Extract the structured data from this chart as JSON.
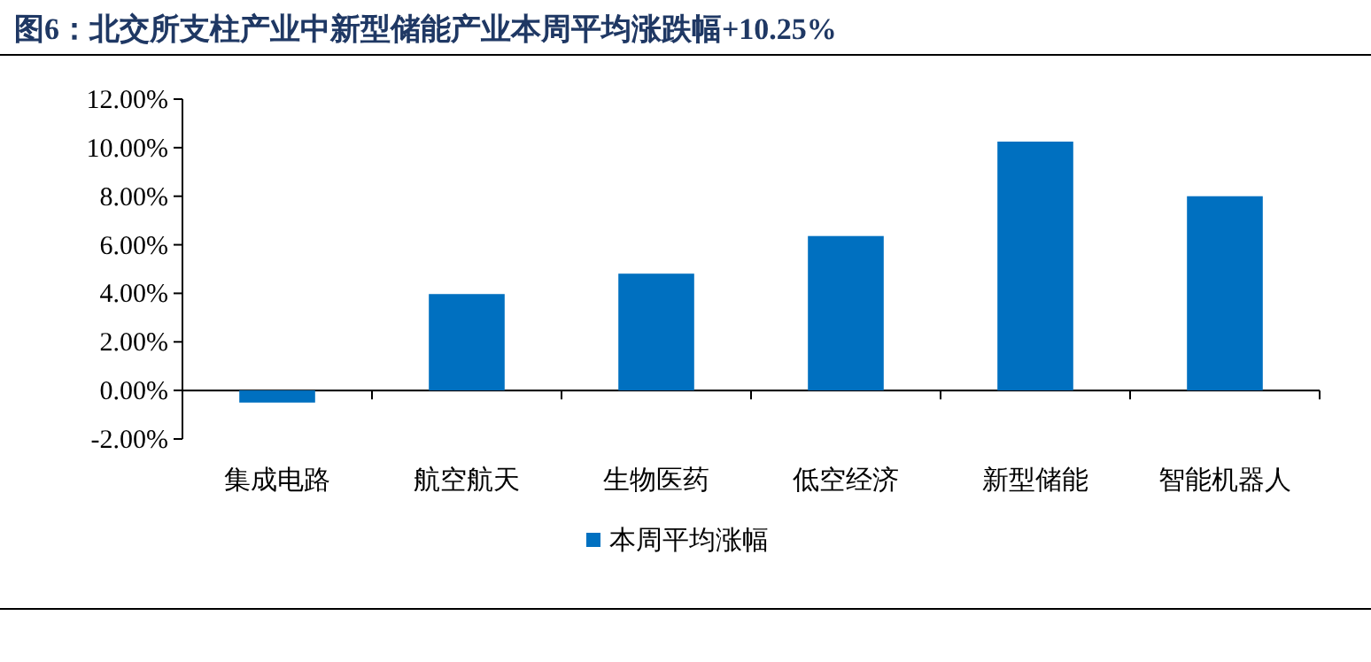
{
  "chart_data": {
    "type": "bar",
    "title": "图6：北交所支柱产业中新型储能产业本周平均涨跌幅+10.25%",
    "categories": [
      "集成电路",
      "航空航天",
      "生物医药",
      "低空经济",
      "新型储能",
      "智能机器人"
    ],
    "series": [
      {
        "name": "本周平均涨幅",
        "color": "#0070c0",
        "values": [
          -0.5,
          3.97,
          4.81,
          6.36,
          10.25,
          8.0
        ]
      }
    ],
    "ylim": [
      -2,
      12
    ],
    "yticks": [
      {
        "value": -2,
        "label": "-2.00%"
      },
      {
        "value": 0,
        "label": "0.00%"
      },
      {
        "value": 2,
        "label": "2.00%"
      },
      {
        "value": 4,
        "label": "4.00%"
      },
      {
        "value": 6,
        "label": "6.00%"
      },
      {
        "value": 8,
        "label": "8.00%"
      },
      {
        "value": 10,
        "label": "10.00%"
      },
      {
        "value": 12,
        "label": "12.00%"
      }
    ],
    "legend": "bottom"
  }
}
